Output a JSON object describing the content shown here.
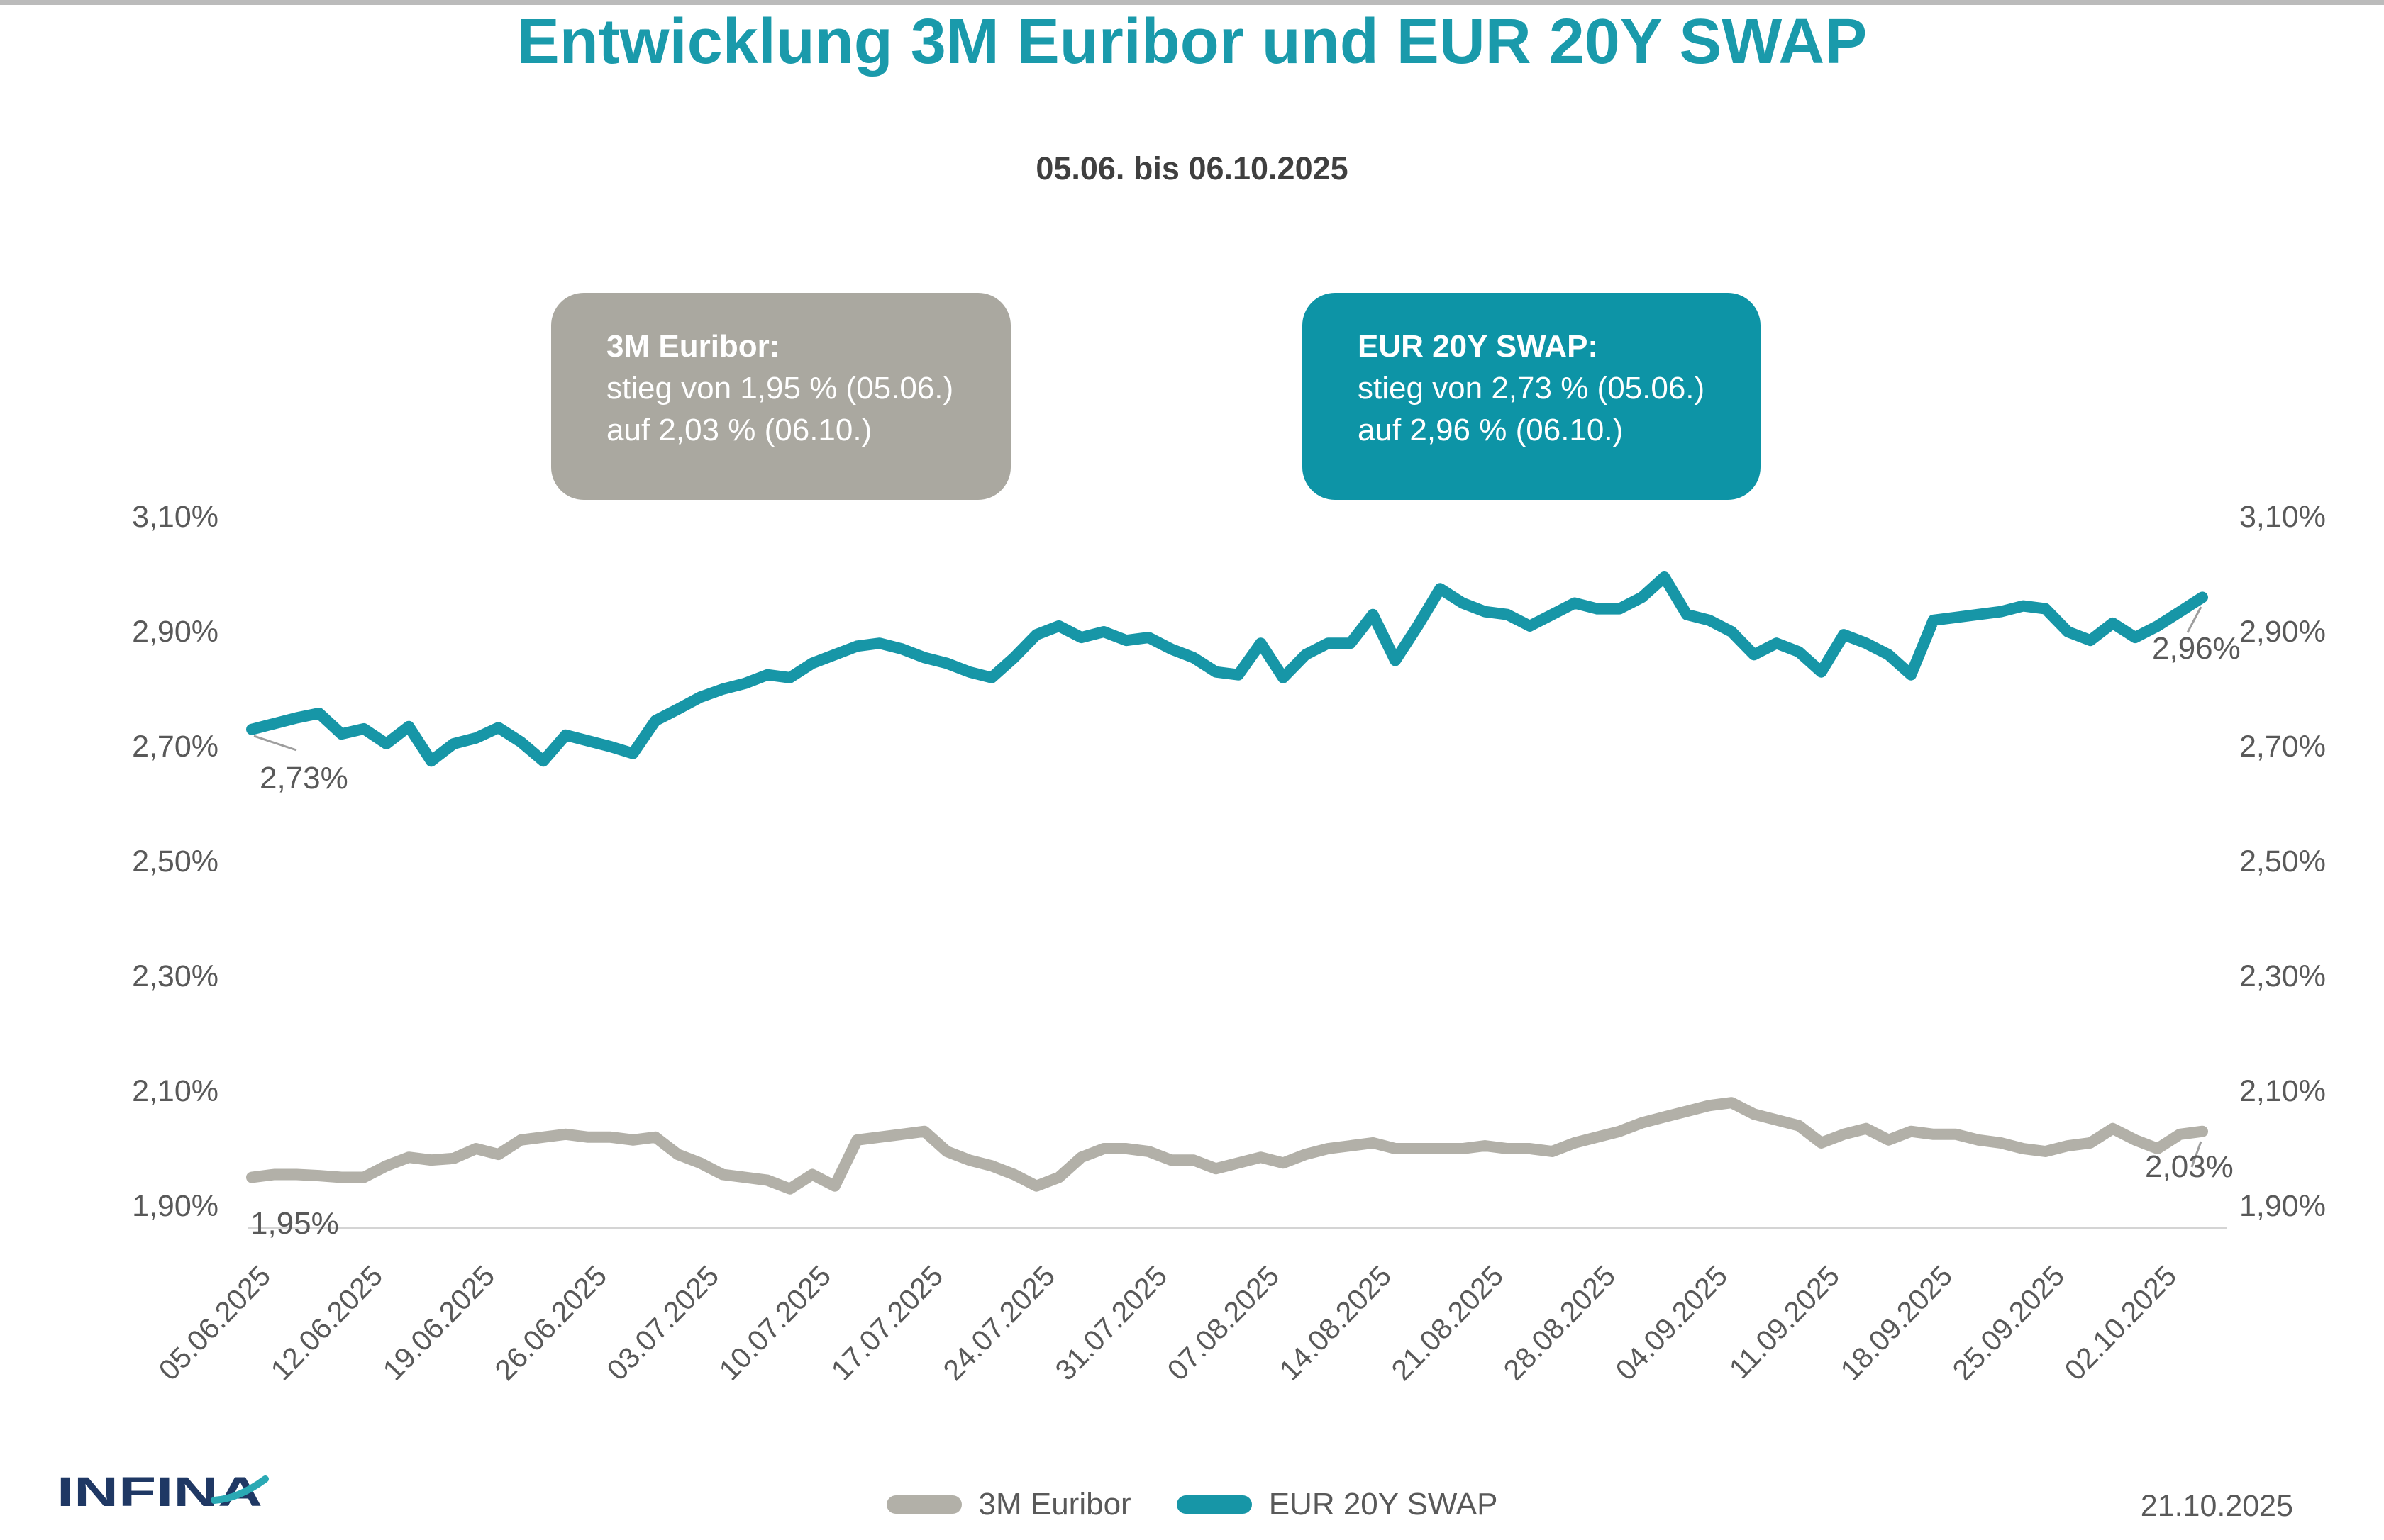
{
  "header": {
    "title": "Entwicklung 3M Euribor und EUR 20Y SWAP",
    "subtitle": "05.06. bis 06.10.2025"
  },
  "annotations": {
    "euribor": {
      "title": "3M Euribor:",
      "line1": "stieg von 1,95 % (05.06.)",
      "line2": "auf 2,03 % (06.10.)"
    },
    "swap": {
      "title": "EUR 20Y SWAP:",
      "line1": "stieg von 2,73 % (05.06.)",
      "line2": "auf 2,96 % (06.10.)"
    }
  },
  "colors": {
    "title_teal": "#1A9AAB",
    "teal": "#1796A7",
    "teal_box": "#0D94A6",
    "gray_line": "#B2B0A8",
    "gray_box": "#AAA8A0",
    "axis_text": "#595959",
    "subtitle_text": "#3F3F3F",
    "axis_line": "#D4D4D4",
    "leader_line": "#9E9E9E",
    "logo_navy": "#1F3864",
    "logo_swoosh": "#2AA9B4",
    "top_strip": "#BBBBBB"
  },
  "chart_data": {
    "type": "line",
    "title": "Entwicklung 3M Euribor und EUR 20Y SWAP",
    "subtitle": "05.06. bis 06.10.2025",
    "xlabel": "",
    "ylabel": "",
    "ylim": [
      1.85,
      3.15
    ],
    "grid": false,
    "legend_position": "bottom-center",
    "y_tick_values": [
      3.1,
      2.9,
      2.7,
      2.5,
      2.3,
      2.1,
      1.9
    ],
    "y_tick_labels_left": [
      "3,10%",
      "2,90%",
      "2,70%",
      "2,50%",
      "2,30%",
      "2,10%",
      "1,90%"
    ],
    "y_tick_labels_right": [
      "3,10%",
      "2,90%",
      "2,70%",
      "2,50%",
      "2,30%",
      "2,10%",
      "1,90%"
    ],
    "x_tick_labels": [
      "05.06.2025",
      "12.06.2025",
      "19.06.2025",
      "26.06.2025",
      "03.07.2025",
      "10.07.2025",
      "17.07.2025",
      "24.07.2025",
      "31.07.2025",
      "07.08.2025",
      "14.08.2025",
      "21.08.2025",
      "28.08.2025",
      "04.09.2025",
      "11.09.2025",
      "18.09.2025",
      "25.09.2025",
      "02.10.2025"
    ],
    "points_per_tick": 5,
    "series": [
      {
        "name": "3M Euribor",
        "color_key": "gray_line",
        "start": {
          "date": "05.06.2025",
          "value_pct": 1.95
        },
        "end": {
          "date": "06.10.2025",
          "value_pct": 2.03
        },
        "values": [
          1.95,
          1.955,
          1.955,
          1.953,
          1.95,
          1.95,
          1.97,
          1.985,
          1.98,
          1.983,
          2.0,
          1.99,
          2.015,
          2.02,
          2.025,
          2.02,
          2.02,
          2.015,
          2.02,
          1.99,
          1.975,
          1.955,
          1.95,
          1.945,
          1.93,
          1.955,
          1.935,
          2.015,
          2.02,
          2.025,
          2.03,
          1.995,
          1.98,
          1.97,
          1.955,
          1.935,
          1.95,
          1.985,
          2.0,
          2.0,
          1.995,
          1.98,
          1.98,
          1.965,
          1.975,
          1.985,
          1.975,
          1.99,
          2.0,
          2.005,
          2.01,
          2.0,
          2.0,
          2.0,
          2.0,
          2.005,
          2.0,
          2.0,
          1.995,
          2.01,
          2.02,
          2.03,
          2.045,
          2.055,
          2.065,
          2.075,
          2.08,
          2.06,
          2.05,
          2.04,
          2.01,
          2.025,
          2.035,
          2.015,
          2.03,
          2.025,
          2.025,
          2.015,
          2.01,
          2.0,
          1.995,
          2.005,
          2.01,
          2.035,
          2.015,
          2.0,
          2.025,
          2.03
        ]
      },
      {
        "name": "EUR 20Y SWAP",
        "color_key": "teal",
        "start": {
          "date": "05.06.2025",
          "value_pct": 2.73
        },
        "end": {
          "date": "06.10.2025",
          "value_pct": 2.96
        },
        "values": [
          2.73,
          2.74,
          2.75,
          2.758,
          2.722,
          2.731,
          2.705,
          2.735,
          2.675,
          2.705,
          2.715,
          2.733,
          2.708,
          2.675,
          2.72,
          2.71,
          2.7,
          2.688,
          2.745,
          2.765,
          2.786,
          2.8,
          2.81,
          2.825,
          2.82,
          2.845,
          2.86,
          2.875,
          2.88,
          2.87,
          2.855,
          2.845,
          2.83,
          2.82,
          2.855,
          2.895,
          2.91,
          2.89,
          2.9,
          2.885,
          2.89,
          2.87,
          2.855,
          2.83,
          2.825,
          2.88,
          2.82,
          2.86,
          2.88,
          2.88,
          2.93,
          2.85,
          2.91,
          2.975,
          2.95,
          2.935,
          2.93,
          2.91,
          2.93,
          2.95,
          2.94,
          2.94,
          2.96,
          2.995,
          2.93,
          2.92,
          2.9,
          2.86,
          2.88,
          2.865,
          2.83,
          2.895,
          2.88,
          2.86,
          2.825,
          2.92,
          2.925,
          2.93,
          2.935,
          2.945,
          2.94,
          2.9,
          2.885,
          2.915,
          2.89,
          2.91,
          2.935,
          2.96
        ]
      }
    ],
    "point_labels": [
      {
        "text": "2,73%",
        "series": "EUR 20Y SWAP",
        "point": "first"
      },
      {
        "text": "2,96%",
        "series": "EUR 20Y SWAP",
        "point": "last"
      },
      {
        "text": "1,95%",
        "series": "3M Euribor",
        "point": "first"
      },
      {
        "text": "2,03%",
        "series": "3M Euribor",
        "point": "last"
      }
    ]
  },
  "legend": [
    {
      "label": "3M Euribor"
    },
    {
      "label": "EUR 20Y SWAP"
    }
  ],
  "footer": {
    "logo_text": "INFINA",
    "date": "21.10.2025"
  }
}
